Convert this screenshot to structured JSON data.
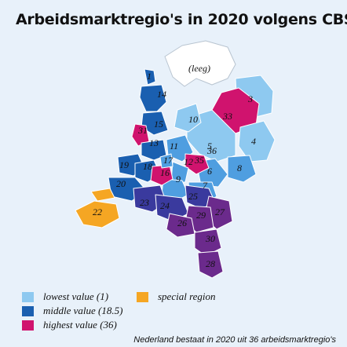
{
  "title": "Arbeidsmarktregio's in 2020 volgens CBS",
  "empty_label": "(leeg)",
  "footnote": "Nederland bestaat in 2020 uit 36 arbeidsmarktregio's",
  "legend": [
    {
      "label": "lowest value (1)",
      "color": "#8ec9f0"
    },
    {
      "label": "middle value (18.5)",
      "color": "#1a5fb0"
    },
    {
      "label": "highest value (36)",
      "color": "#d0136e"
    },
    {
      "label": "special region",
      "color": "#f5a623"
    }
  ],
  "colors": {
    "low": "#8ec9f0",
    "lowmid": "#4f9ee0",
    "mid": "#1a5fb0",
    "midhigh": "#3a3a9e",
    "purple": "#6b2a8c",
    "high": "#d0136e",
    "special": "#f5a623",
    "empty": "#ffffff"
  },
  "regions": [
    {
      "label": "1",
      "value": 1,
      "color": "#8ec9f0"
    },
    {
      "label": "3",
      "value": 3,
      "color": "#8ec9f0"
    },
    {
      "label": "4",
      "value": 4,
      "color": "#8ec9f0"
    },
    {
      "label": "5",
      "value": 5,
      "color": "#8ec9f0"
    },
    {
      "label": "6",
      "value": 6,
      "color": "#8ec9f0"
    },
    {
      "label": "7",
      "value": 7,
      "color": "#8ec9f0"
    },
    {
      "label": "8",
      "value": 8,
      "color": "#4f9ee0"
    },
    {
      "label": "9",
      "value": 9,
      "color": "#4f9ee0"
    },
    {
      "label": "10",
      "value": 10,
      "color": "#4f9ee0"
    },
    {
      "label": "11",
      "value": 11,
      "color": "#4f9ee0"
    },
    {
      "label": "12",
      "value": 12,
      "color": "#4f9ee0"
    },
    {
      "label": "13",
      "value": 13,
      "color": "#4f9ee0"
    },
    {
      "label": "14",
      "value": 14,
      "color": "#1a5fb0"
    },
    {
      "label": "15",
      "value": 15,
      "color": "#1a5fb0"
    },
    {
      "label": "16",
      "value": 16,
      "color": "#1a5fb0"
    },
    {
      "label": "17",
      "value": 17,
      "color": "#1a5fb0"
    },
    {
      "label": "18",
      "value": 18,
      "color": "#1a5fb0"
    },
    {
      "label": "19",
      "value": 19,
      "color": "#1a5fb0"
    },
    {
      "label": "20",
      "value": 20,
      "color": "#1a5fb0"
    },
    {
      "label": "22",
      "value": 22,
      "color": "#f5a623"
    },
    {
      "label": "23",
      "value": 23,
      "color": "#3a3a9e"
    },
    {
      "label": "24",
      "value": 24,
      "color": "#3a3a9e"
    },
    {
      "label": "25",
      "value": 25,
      "color": "#3a3a9e"
    },
    {
      "label": "26",
      "value": 26,
      "color": "#6b2a8c"
    },
    {
      "label": "27",
      "value": 27,
      "color": "#6b2a8c"
    },
    {
      "label": "28",
      "value": 28,
      "color": "#6b2a8c"
    },
    {
      "label": "29",
      "value": 29,
      "color": "#6b2a8c"
    },
    {
      "label": "30",
      "value": 30,
      "color": "#6b2a8c"
    },
    {
      "label": "31",
      "value": 31,
      "color": "#d0136e"
    },
    {
      "label": "33",
      "value": 33,
      "color": "#d0136e"
    },
    {
      "label": "35",
      "value": 35,
      "color": "#d0136e"
    },
    {
      "label": "36",
      "value": 36,
      "color": "#d0136e"
    }
  ]
}
